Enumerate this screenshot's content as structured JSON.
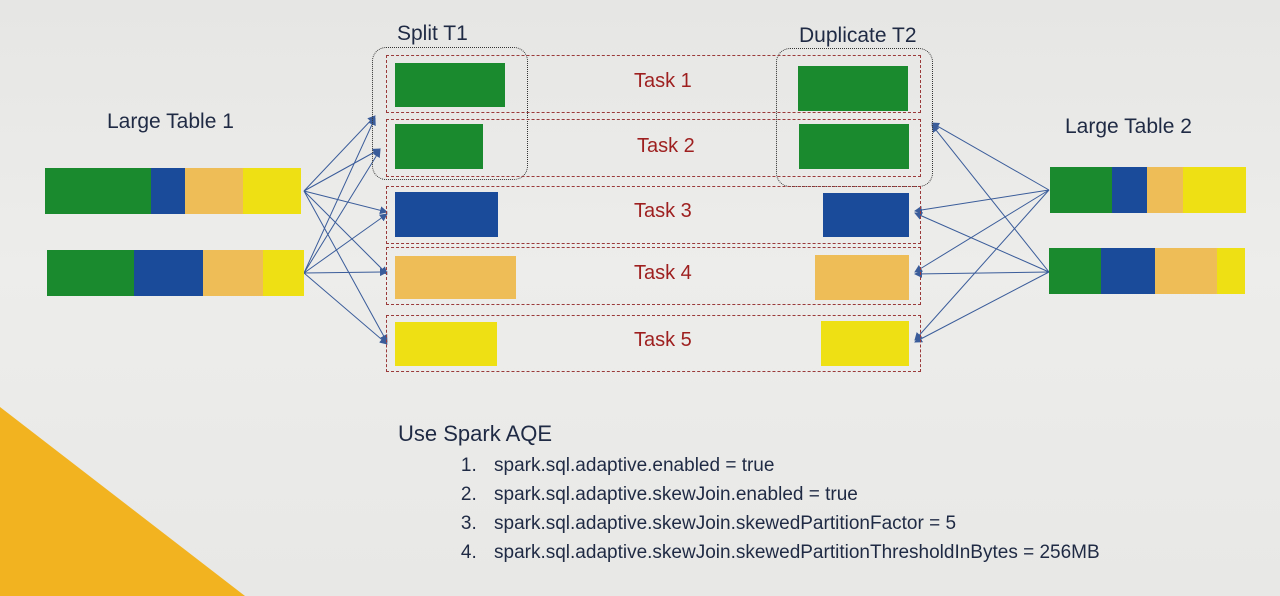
{
  "colors": {
    "green": "#1a8a2e",
    "blue": "#1a4b9a",
    "orange": "#eebd57",
    "yellow": "#eee014",
    "accent_triangle": "#f2b320",
    "task_text": "#9e1f1f",
    "arrow": "#3a5c9a"
  },
  "labels": {
    "split": "Split T1",
    "duplicate": "Duplicate T2",
    "large_table_1": "Large Table 1",
    "large_table_2": "Large Table 2"
  },
  "tasks": [
    "Task 1",
    "Task 2",
    "Task 3",
    "Task 4",
    "Task 5"
  ],
  "notes": {
    "heading": "Use Spark AQE",
    "items": [
      "spark.sql.adaptive.enabled = true",
      "spark.sql.adaptive.skewJoin.enabled = true",
      "spark.sql.adaptive.skewJoin.skewedPartitionFactor = 5",
      "spark.sql.adaptive.skewJoin.skewedPartitionThresholdInBytes = 256MB"
    ]
  }
}
